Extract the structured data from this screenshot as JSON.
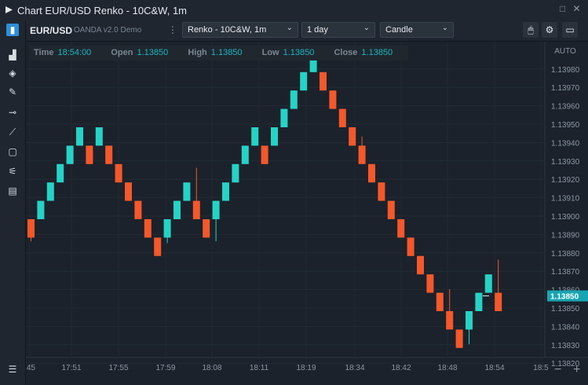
{
  "window": {
    "title": "Chart EUR/USD Renko - 10C&W, 1m"
  },
  "toolbar": {
    "symbol": "EUR/USD",
    "feed": "OANDA v2.0 Demo",
    "chart_type_select": "Renko - 10C&W, 1m",
    "period_select": "1 day",
    "style_select": "Candle"
  },
  "ohlc": {
    "time_label": "Time",
    "time": "18:54:00",
    "open_label": "Open",
    "open": "1.13850",
    "high_label": "High",
    "high": "1.13850",
    "low_label": "Low",
    "low": "1.13850",
    "close_label": "Close",
    "close": "1.13850"
  },
  "colors": {
    "up": "#25d3c6",
    "down": "#f4582b",
    "background": "#1b222b",
    "price_tag": "#18a5b2"
  },
  "chart_data": {
    "type": "renko",
    "box_size": 0.0001,
    "y_axis_mode": "AUTO",
    "ylim": [
      1.13815,
      1.13985
    ],
    "current_price": "1.13850",
    "yticks": [
      "1.13980",
      "1.13970",
      "1.13960",
      "1.13950",
      "1.13940",
      "1.13930",
      "1.13920",
      "1.13910",
      "1.13900",
      "1.13890",
      "1.13880",
      "1.13870",
      "1.13860",
      "1.13850",
      "1.13840",
      "1.13830",
      "1.13820"
    ],
    "xticks": [
      ":45",
      "17:51",
      "17:55",
      "17:59",
      "18:08",
      "18:11",
      "18:19",
      "18:34",
      "18:42",
      "18:48",
      "18:54",
      "18:5"
    ],
    "bricks": [
      {
        "dir": "down",
        "open": 1.1389,
        "close": 1.1388,
        "low": 1.13878,
        "high": 1.1389
      },
      {
        "dir": "up",
        "open": 1.1389,
        "close": 1.139,
        "low": 1.1389,
        "high": 1.139
      },
      {
        "dir": "up",
        "open": 1.139,
        "close": 1.1391,
        "low": 1.139,
        "high": 1.1391
      },
      {
        "dir": "up",
        "open": 1.1391,
        "close": 1.1392,
        "low": 1.1391,
        "high": 1.1392
      },
      {
        "dir": "up",
        "open": 1.1392,
        "close": 1.1393,
        "low": 1.1392,
        "high": 1.1393
      },
      {
        "dir": "up",
        "open": 1.1393,
        "close": 1.1394,
        "low": 1.1393,
        "high": 1.1394
      },
      {
        "dir": "down",
        "open": 1.1393,
        "close": 1.1392,
        "low": 1.1392,
        "high": 1.1393
      },
      {
        "dir": "up",
        "open": 1.1393,
        "close": 1.1394,
        "low": 1.1393,
        "high": 1.1394
      },
      {
        "dir": "down",
        "open": 1.1393,
        "close": 1.1392,
        "low": 1.1392,
        "high": 1.1393
      },
      {
        "dir": "down",
        "open": 1.1392,
        "close": 1.1391,
        "low": 1.1391,
        "high": 1.1392
      },
      {
        "dir": "down",
        "open": 1.1391,
        "close": 1.139,
        "low": 1.139,
        "high": 1.1391
      },
      {
        "dir": "down",
        "open": 1.139,
        "close": 1.1389,
        "low": 1.1389,
        "high": 1.139
      },
      {
        "dir": "down",
        "open": 1.1389,
        "close": 1.1388,
        "low": 1.1388,
        "high": 1.1389
      },
      {
        "dir": "down",
        "open": 1.1388,
        "close": 1.1387,
        "low": 1.1387,
        "high": 1.1388
      },
      {
        "dir": "up",
        "open": 1.1388,
        "close": 1.1389,
        "low": 1.13877,
        "high": 1.1389
      },
      {
        "dir": "up",
        "open": 1.1389,
        "close": 1.139,
        "low": 1.1389,
        "high": 1.139
      },
      {
        "dir": "up",
        "open": 1.139,
        "close": 1.1391,
        "low": 1.139,
        "high": 1.1391
      },
      {
        "dir": "down",
        "open": 1.139,
        "close": 1.1389,
        "low": 1.1389,
        "high": 1.13918
      },
      {
        "dir": "down",
        "open": 1.1389,
        "close": 1.1388,
        "low": 1.1388,
        "high": 1.1389
      },
      {
        "dir": "up",
        "open": 1.1389,
        "close": 1.139,
        "low": 1.13878,
        "high": 1.139
      },
      {
        "dir": "up",
        "open": 1.139,
        "close": 1.1391,
        "low": 1.139,
        "high": 1.1391
      },
      {
        "dir": "up",
        "open": 1.1391,
        "close": 1.1392,
        "low": 1.1391,
        "high": 1.1392
      },
      {
        "dir": "up",
        "open": 1.1392,
        "close": 1.1393,
        "low": 1.1392,
        "high": 1.1393
      },
      {
        "dir": "up",
        "open": 1.1393,
        "close": 1.1394,
        "low": 1.1393,
        "high": 1.1394
      },
      {
        "dir": "down",
        "open": 1.1393,
        "close": 1.1392,
        "low": 1.1392,
        "high": 1.1393
      },
      {
        "dir": "up",
        "open": 1.1393,
        "close": 1.1394,
        "low": 1.1393,
        "high": 1.1394
      },
      {
        "dir": "up",
        "open": 1.1394,
        "close": 1.1395,
        "low": 1.1394,
        "high": 1.1395
      },
      {
        "dir": "up",
        "open": 1.1395,
        "close": 1.1396,
        "low": 1.1395,
        "high": 1.1396
      },
      {
        "dir": "up",
        "open": 1.1396,
        "close": 1.1397,
        "low": 1.1396,
        "high": 1.1397
      },
      {
        "dir": "up",
        "open": 1.1397,
        "close": 1.1398,
        "low": 1.1397,
        "high": 1.1398
      },
      {
        "dir": "down",
        "open": 1.1397,
        "close": 1.1396,
        "low": 1.1396,
        "high": 1.1397
      },
      {
        "dir": "down",
        "open": 1.1396,
        "close": 1.1395,
        "low": 1.1395,
        "high": 1.1396
      },
      {
        "dir": "down",
        "open": 1.1395,
        "close": 1.1394,
        "low": 1.1394,
        "high": 1.1395
      },
      {
        "dir": "down",
        "open": 1.1394,
        "close": 1.1393,
        "low": 1.1393,
        "high": 1.1394
      },
      {
        "dir": "down",
        "open": 1.1393,
        "close": 1.1392,
        "low": 1.1392,
        "high": 1.13935
      },
      {
        "dir": "down",
        "open": 1.1392,
        "close": 1.1391,
        "low": 1.1391,
        "high": 1.1392
      },
      {
        "dir": "down",
        "open": 1.1391,
        "close": 1.139,
        "low": 1.139,
        "high": 1.1391
      },
      {
        "dir": "down",
        "open": 1.139,
        "close": 1.1389,
        "low": 1.1389,
        "high": 1.139
      },
      {
        "dir": "down",
        "open": 1.1389,
        "close": 1.1388,
        "low": 1.1388,
        "high": 1.1389
      },
      {
        "dir": "down",
        "open": 1.1388,
        "close": 1.1387,
        "low": 1.1387,
        "high": 1.1388
      },
      {
        "dir": "down",
        "open": 1.1387,
        "close": 1.1386,
        "low": 1.1386,
        "high": 1.1387
      },
      {
        "dir": "down",
        "open": 1.1386,
        "close": 1.1385,
        "low": 1.1385,
        "high": 1.1386
      },
      {
        "dir": "down",
        "open": 1.1385,
        "close": 1.1384,
        "low": 1.1384,
        "high": 1.1385
      },
      {
        "dir": "down",
        "open": 1.1384,
        "close": 1.1383,
        "low": 1.1383,
        "high": 1.13852
      },
      {
        "dir": "down",
        "open": 1.1383,
        "close": 1.1382,
        "low": 1.1382,
        "high": 1.1383
      },
      {
        "dir": "up",
        "open": 1.1383,
        "close": 1.1384,
        "low": 1.13822,
        "high": 1.1384
      },
      {
        "dir": "up",
        "open": 1.1384,
        "close": 1.1385,
        "low": 1.1384,
        "high": 1.1385
      },
      {
        "dir": "up",
        "open": 1.1385,
        "close": 1.1386,
        "low": 1.1385,
        "high": 1.1386
      },
      {
        "dir": "down",
        "open": 1.1385,
        "close": 1.1384,
        "low": 1.1384,
        "high": 1.13868
      }
    ]
  },
  "axis_controls": {
    "mode": "AUTO",
    "minus": "−",
    "plus": "+"
  }
}
